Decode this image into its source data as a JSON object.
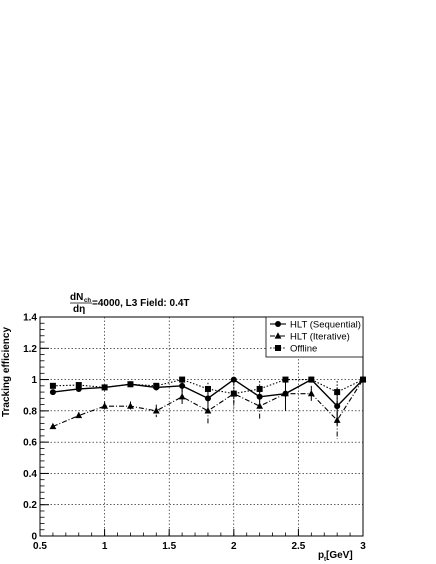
{
  "chart_data": {
    "type": "line",
    "annotation": {
      "fraction_numerator": "dN",
      "numerator_sub": "ch",
      "fraction_denominator": "dη",
      "text": "=4000,   L3 Field: 0.4T"
    },
    "xlabel": "p",
    "xlabel_sub": "t",
    "xlabel_unit": " [GeV]",
    "ylabel": "Tracking efficiency",
    "xlim": [
      0.5,
      3.0
    ],
    "ylim": [
      0.0,
      1.4
    ],
    "x_ticks": [
      "0.5",
      "1",
      "1.5",
      "2",
      "2.5",
      "3"
    ],
    "y_ticks": [
      "0",
      "0.2",
      "0.4",
      "0.6",
      "0.8",
      "1",
      "1.2",
      "1.4"
    ],
    "grid": true,
    "legend_position": "top-right",
    "series": [
      {
        "name": "HLT (Sequential)",
        "marker": "circle",
        "line_style": "solid",
        "x": [
          0.6,
          0.8,
          1.0,
          1.2,
          1.4,
          1.6,
          1.8,
          2.0,
          2.2,
          2.4,
          2.6,
          2.8,
          3.0
        ],
        "y": [
          0.92,
          0.94,
          0.95,
          0.97,
          0.95,
          0.96,
          0.88,
          1.0,
          0.89,
          0.91,
          1.0,
          0.83,
          1.0
        ],
        "err": [
          0.015,
          0.015,
          0.015,
          0.015,
          0.02,
          0.04,
          0.07,
          0.0,
          0.06,
          0.11,
          0.0,
          0.12,
          0.0
        ]
      },
      {
        "name": "HLT (Iterative)",
        "marker": "triangle",
        "line_style": "dashdot",
        "x": [
          0.6,
          0.8,
          1.0,
          1.2,
          1.4,
          1.6,
          1.8,
          2.0,
          2.2,
          2.4,
          2.6,
          2.8,
          3.0
        ],
        "y": [
          0.7,
          0.77,
          0.83,
          0.83,
          0.8,
          0.89,
          0.8,
          0.91,
          0.83,
          0.91,
          0.91,
          0.74,
          1.0
        ],
        "err": [
          0.015,
          0.02,
          0.03,
          0.03,
          0.04,
          0.05,
          0.08,
          0.09,
          0.08,
          0.0,
          0.05,
          0.12,
          0.0
        ]
      },
      {
        "name": "Offline",
        "marker": "square",
        "line_style": "dotted",
        "x": [
          0.6,
          0.8,
          1.0,
          1.2,
          1.4,
          1.6,
          1.8,
          2.0,
          2.2,
          2.4,
          2.6,
          2.8,
          3.0
        ],
        "y": [
          0.96,
          0.965,
          0.95,
          0.97,
          0.96,
          1.0,
          0.94,
          0.91,
          0.94,
          1.0,
          1.0,
          0.92,
          1.0
        ],
        "err": [
          0.01,
          0.01,
          0.01,
          0.01,
          0.015,
          0.0,
          0.04,
          0.06,
          0.05,
          0.0,
          0.0,
          0.07,
          0.0
        ]
      }
    ]
  }
}
